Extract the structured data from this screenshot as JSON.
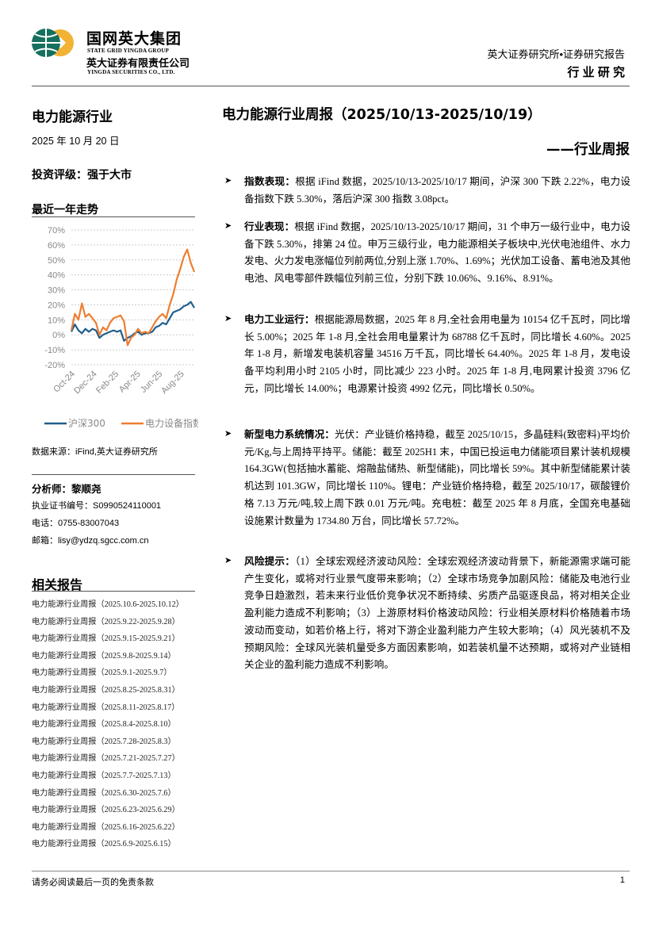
{
  "header": {
    "logo": {
      "cn": "国网英大集团",
      "en": "STATE GRID YINGDA GROUP",
      "cn2": "英大证券有限责任公司",
      "en2": "YINGDA SECURITIES CO., LTD."
    },
    "org_line": "英大证券研究所•证券研究报告",
    "category": "行 业 研 究"
  },
  "left": {
    "industry": "电力能源行业",
    "date": "2025 年 10 月 20 日",
    "rating": "投资评级：强于大市",
    "trend_title": "最近一年走势",
    "source": "数据来源：iFind,英大证券研究所",
    "analyst": "分析师：黎顺尧",
    "license": "执业证书编号：S0990524110001",
    "phone": "电话：0755-83007043",
    "email": "邮箱：lisy@ydzq.sgcc.com.cn",
    "related_title": "相关报告",
    "related": [
      "电力能源行业周报（2025.10.6-2025.10.12）",
      "电力能源行业周报（2025.9.22-2025.9.28）",
      "电力能源行业周报（2025.9.15-2025.9.21）",
      "电力能源行业周报（2025.9.8-2025.9.14）",
      "电力能源行业周报（2025.9.1-2025.9.7）",
      "电力能源行业周报（2025.8.25-2025.8.31）",
      "电力能源行业周报（2025.8.11-2025.8.17）",
      "电力能源行业周报（2025.8.4-2025.8.10）",
      "电力能源行业周报（2025.7.28-2025.8.3）",
      "电力能源行业周报（2025.7.21-2025.7.27）",
      "电力能源行业周报（2025.7.7-2025.7.13）",
      "电力能源行业周报（2025.6.30-2025.7.6）",
      "电力能源行业周报（2025.6.23-2025.6.29）",
      "电力能源行业周报（2025.6.16-2025.6.22）",
      "电力能源行业周报（2025.6.9-2025.6.15）"
    ]
  },
  "main": {
    "title": "电力能源行业周报（2025/10/13-2025/10/19）",
    "subtitle": "——行业周报",
    "sections": [
      {
        "head": "指数表现：",
        "body": "根据 iFind 数据，2025/10/13-2025/10/17 期间，沪深 300 下跌 2.22%，电力设备指数下跌 5.30%，落后沪深 300 指数 3.08pct。"
      },
      {
        "head": "行业表现：",
        "body": "根据 iFind 数据，2025/10/13-2025/10/17 期间，31 个申万一级行业中，电力设备下跌 5.30%，排第 24 位。申万三级行业，电力能源相关子板块中,光伏电池组件、水力发电、火力发电涨幅位列前两位,分别上涨 1.70%、1.69%；光伏加工设备、蓄电池及其他电池、风电零部件跌幅位列前三位，分别下跌 10.06%、9.16%、8.91%。"
      },
      {
        "head": "电力工业运行：",
        "body": "根据能源局数据，2025 年 8 月,全社会用电量为 10154 亿千瓦时，同比增长 5.00%；2025 年 1-8 月,全社会用电量累计为 68788 亿千瓦时，同比增长 4.60%。2025 年 1-8 月，新增发电装机容量 34516 万千瓦，同比增长 64.40%。2025 年 1-8 月，发电设备平均利用小时 2105 小时，同比减少 223 小时。2025 年 1-8 月,电网累计投资 3796 亿元，同比增长 14.00%；电源累计投资 4992 亿元，同比增长 0.50%。"
      },
      {
        "head": "新型电力系统情况：",
        "body": "光伏：产业链价格持稳，截至 2025/10/15，多晶硅料(致密料)平均价元/Kg,与上周持平持平。储能：截至 2025H1 末，中国已投运电力储能项目累计装机规模 164.3GW(包括抽水蓄能、熔融盐储热、新型储能)，同比增长 59%。其中新型储能累计装机达到 101.3GW，同比增长 110%。锂电：产业链价格持稳，截至 2025/10/17，碳酸锂价格 7.13 万元/吨,较上周下跌 0.01 万元/吨。充电桩：截至 2025 年 8 月底，全国充电基础设施累计数量为 1734.80 万台，同比增长 57.72%。"
      },
      {
        "head": "风险提示：",
        "body": "（1）全球宏观经济波动风险：全球宏观经济波动背景下，新能源需求端可能产生变化，或将对行业景气度带来影响；（2）全球市场竞争加剧风险：储能及电池行业竞争日趋激烈，若未来行业低价竞争状况不断持续、劣质产品驱逐良品，将对相关企业盈利能力造成不利影响；（3）上游原材料价格波动风险：行业相关原材料价格随着市场波动而变动，如若价格上行，将对下游企业盈利能力产生较大影响；（4）风光装机不及预期风险：全球风光装机量受多方面因素影响，如若装机量不达预期，或将对产业链相关企业的盈利能力造成不利影响。"
      }
    ]
  },
  "footer": {
    "disclaimer": "请务必阅读最后一页的免责条款",
    "page": "1"
  },
  "chart_data": {
    "type": "line",
    "ylim": [
      -20,
      70
    ],
    "yticks": [
      "70%",
      "60%",
      "50%",
      "40%",
      "30%",
      "20%",
      "10%",
      "0%",
      "-10%",
      "-20%"
    ],
    "ytick_values": [
      70,
      60,
      50,
      40,
      30,
      20,
      10,
      0,
      -10,
      -20
    ],
    "xticks": [
      "Oct-24",
      "Dec-24",
      "Feb-25",
      "Apr-25",
      "Jun-25",
      "Aug-25"
    ],
    "grid": true,
    "legend": "bottom",
    "series": [
      {
        "name": "沪深300",
        "color": "#1f5f8b",
        "values": [
          2,
          7,
          3,
          1,
          4,
          2,
          4,
          3,
          -2,
          0,
          1,
          2,
          3,
          2,
          3,
          -4,
          -2,
          -1,
          1,
          2,
          0,
          1,
          1,
          2,
          5,
          6,
          8,
          7,
          11,
          15,
          16,
          17,
          19,
          20,
          22,
          18
        ]
      },
      {
        "name": "电力设备指数",
        "color": "#ee7d31",
        "values": [
          3,
          14,
          10,
          21,
          12,
          14,
          11,
          8,
          0,
          5,
          3,
          8,
          11,
          12,
          13,
          9,
          -7,
          -2,
          0,
          4,
          1,
          2,
          1,
          5,
          9,
          12,
          14,
          11,
          20,
          27,
          37,
          44,
          52,
          57,
          48,
          42
        ]
      }
    ]
  }
}
